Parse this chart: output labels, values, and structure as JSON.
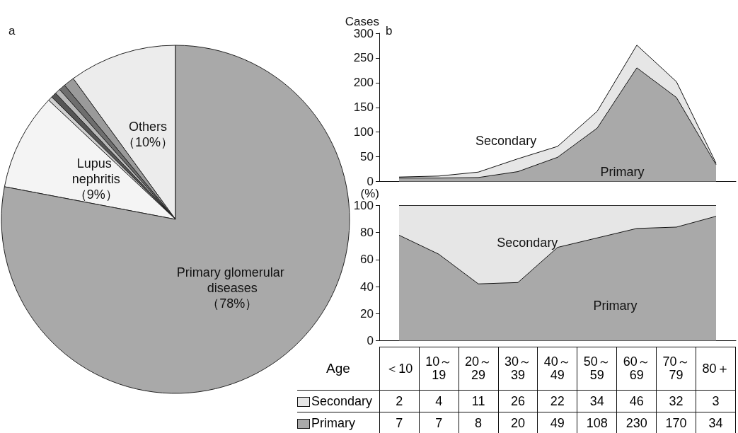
{
  "chart_data": [
    {
      "type": "pie",
      "annotations": [
        "a"
      ],
      "categories": [
        "Others",
        null,
        null,
        null,
        null,
        null,
        "Lupus nephritis",
        "Primary glomerular diseases"
      ],
      "values": [
        10,
        1.0,
        0.6,
        0.5,
        0.5,
        0.4,
        9,
        78
      ],
      "colors": [
        "#ececec",
        "#9a9a9a",
        "#6e6e6e",
        "#b8b8b8",
        "#555555",
        "#cfcfcf",
        "#f4f4f4",
        "#a9a9a9"
      ],
      "value_labels": [
        "（10%）",
        null,
        null,
        null,
        null,
        null,
        "（9%）",
        "（78%）"
      ]
    },
    {
      "type": "area",
      "stacked": true,
      "annotations": [
        "b"
      ],
      "ylabel": "Cases",
      "xlabel": "Age",
      "categories": [
        "＜10",
        "10～19",
        "20～29",
        "30～39",
        "40～49",
        "50～59",
        "60～69",
        "70～79",
        "80＋"
      ],
      "ylim": [
        0,
        300
      ],
      "yticks": [
        0,
        50,
        100,
        150,
        200,
        250,
        300
      ],
      "tick_labels": "y",
      "marker": "none",
      "data_labels": true,
      "legend": "bottom",
      "series": [
        {
          "name": "Primary",
          "color": "#a9a9a9",
          "values": [
            7,
            7,
            8,
            20,
            49,
            108,
            230,
            170,
            34
          ]
        },
        {
          "name": "Secondary",
          "color": "#e6e6e6",
          "values": [
            2,
            4,
            11,
            26,
            22,
            34,
            46,
            32,
            3
          ]
        }
      ]
    },
    {
      "type": "area",
      "stacked": true,
      "ylabel": "(%)",
      "categories": [
        "＜10",
        "10～19",
        "20～29",
        "30～39",
        "40～49",
        "50～59",
        "60～69",
        "70～79",
        "80＋"
      ],
      "ylim": [
        0,
        100
      ],
      "yticks": [
        0,
        20,
        40,
        60,
        80,
        100
      ],
      "tick_labels": "y",
      "marker": "none",
      "series": [
        {
          "name": "Primary",
          "color": "#a9a9a9",
          "values": [
            78,
            64,
            42,
            43,
            69,
            76,
            83,
            84,
            92
          ]
        },
        {
          "name": "Secondary",
          "color": "#e6e6e6",
          "values": [
            22,
            36,
            58,
            57,
            31,
            24,
            17,
            16,
            8
          ]
        }
      ]
    }
  ]
}
